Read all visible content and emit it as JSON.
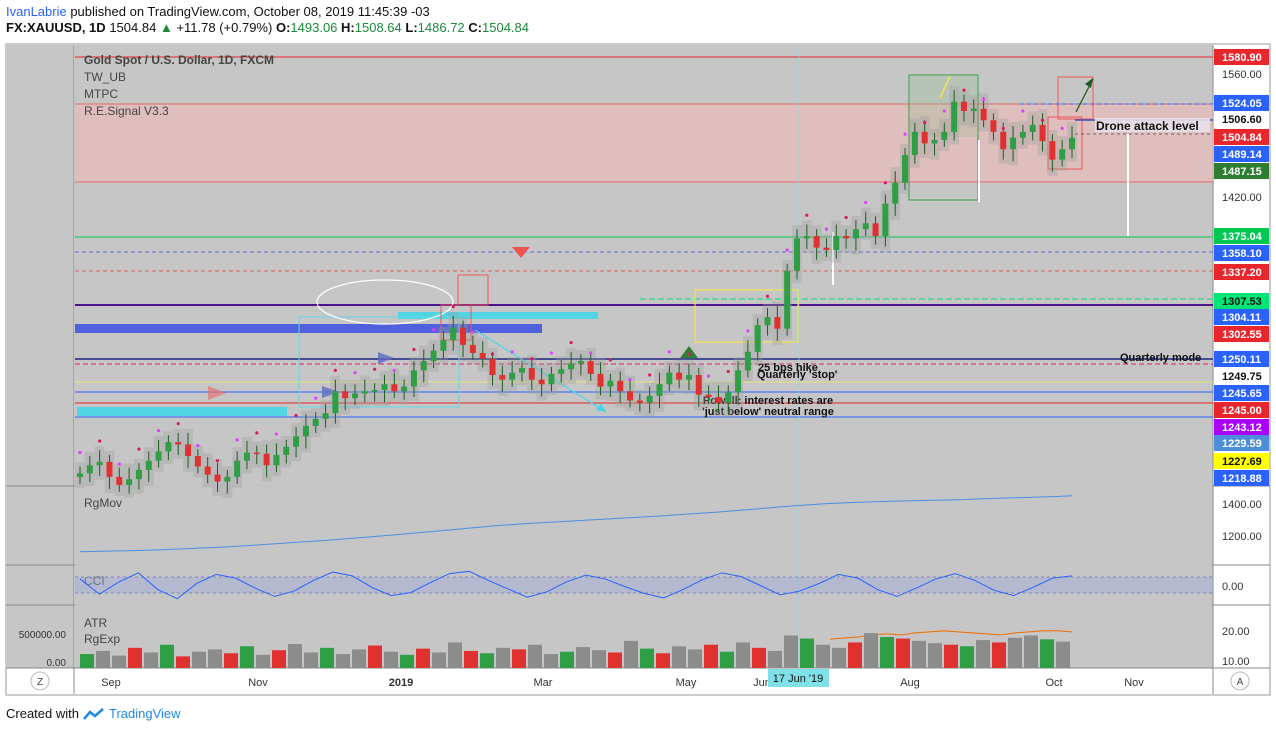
{
  "header": {
    "author": "IvanLabrie",
    "published": " published on TradingView.com, October 08, 2019 11:45:39 -03",
    "symbol": "FX:XAUUSD, 1D",
    "last": "1504.84",
    "change": "+11.78 (+0.79%)",
    "o_label": "O:",
    "o": "1493.06",
    "h_label": "H:",
    "h": "1508.64",
    "l_label": "L:",
    "l": "1486.72",
    "c_label": "C:",
    "c": "1504.84"
  },
  "footer": {
    "created_with": "Created with",
    "brand": "TradingView"
  },
  "chart_data": {
    "type": "candlestick",
    "title": "Gold Spot / U.S. Dollar, 1D, FXCM",
    "indicators": [
      "TW_UB",
      "MTPC",
      "R.E.Signal V3.3"
    ],
    "x_ticks": [
      "Sep",
      "Nov",
      "2019",
      "Mar",
      "May",
      "Jun",
      "Aug",
      "Oct",
      "Nov"
    ],
    "crosshair_date": "17 Jun '19",
    "y_ticks": [
      "1560.00",
      "1420.00",
      "1200.00"
    ],
    "ylim": [
      1205,
      1585
    ],
    "price_levels": [
      {
        "label": "1580.90",
        "bg": "#e8262c",
        "fg": "#ffffff"
      },
      {
        "label": "1524.05",
        "bg": "#2962ff",
        "fg": "#ffffff"
      },
      {
        "label": "1506.60",
        "bg": "#ffffff",
        "fg": "#111111"
      },
      {
        "label": "1504.84",
        "bg": "#e8262c",
        "fg": "#ffffff"
      },
      {
        "label": "1489.14",
        "bg": "#2962ff",
        "fg": "#ffffff"
      },
      {
        "label": "1487.15",
        "bg": "#2e7d32",
        "fg": "#ffffff"
      },
      {
        "label": "1375.04",
        "bg": "#00c853",
        "fg": "#ffffff"
      },
      {
        "label": "1358.10",
        "bg": "#2962ff",
        "fg": "#ffffff"
      },
      {
        "label": "1337.20",
        "bg": "#e8262c",
        "fg": "#ffffff"
      },
      {
        "label": "1307.53",
        "bg": "#00e676",
        "fg": "#111111"
      },
      {
        "label": "1304.11",
        "bg": "#2962ff",
        "fg": "#ffffff"
      },
      {
        "label": "1302.55",
        "bg": "#e8262c",
        "fg": "#ffffff"
      },
      {
        "label": "1250.11",
        "bg": "#2962ff",
        "fg": "#ffffff"
      },
      {
        "label": "1249.75",
        "bg": "#ffffff",
        "fg": "#111111"
      },
      {
        "label": "1245.65",
        "bg": "#2962ff",
        "fg": "#ffffff"
      },
      {
        "label": "1245.00",
        "bg": "#e8262c",
        "fg": "#ffffff"
      },
      {
        "label": "1243.12",
        "bg": "#aa00ff",
        "fg": "#ffffff"
      },
      {
        "label": "1229.59",
        "bg": "#4c8ed9",
        "fg": "#ffffff"
      },
      {
        "label": "1227.69",
        "bg": "#ffff00",
        "fg": "#111111"
      },
      {
        "label": "1218.88",
        "bg": "#2962ff",
        "fg": "#ffffff"
      }
    ],
    "annotations": [
      "Drone attack level",
      "Quarterly mode",
      "25 bps hike",
      "Quarterly 'stop'",
      "Powell: interest rates are",
      "'just below' neutral range"
    ],
    "close_series": [
      1215,
      1222,
      1225,
      1212,
      1205,
      1210,
      1218,
      1226,
      1234,
      1242,
      1240,
      1230,
      1221,
      1214,
      1208,
      1212,
      1226,
      1233,
      1232,
      1222,
      1231,
      1238,
      1247,
      1256,
      1262,
      1267,
      1286,
      1280,
      1284,
      1286,
      1287,
      1292,
      1286,
      1290,
      1304,
      1312,
      1321,
      1330,
      1341,
      1326,
      1319,
      1314,
      1300,
      1296,
      1302,
      1306,
      1296,
      1292,
      1301,
      1305,
      1310,
      1312,
      1301,
      1290,
      1295,
      1286,
      1278,
      1276,
      1282,
      1292,
      1302,
      1296,
      1300,
      1283,
      1281,
      1276,
      1285,
      1304,
      1320,
      1343,
      1350,
      1340,
      1390,
      1418,
      1420,
      1410,
      1408,
      1420,
      1418,
      1426,
      1431,
      1420,
      1448,
      1466,
      1490,
      1510,
      1500,
      1503,
      1510,
      1536,
      1528,
      1530,
      1520,
      1510,
      1495,
      1505,
      1510,
      1516,
      1502,
      1486,
      1495,
      1504.84
    ],
    "panels": [
      {
        "name": "RgMov",
        "ticks": [
          "1400.00",
          "1200.00"
        ],
        "ylim": [
          1080,
          1520
        ],
        "values": [
          1150,
          1152,
          1154,
          1156,
          1158,
          1161,
          1164,
          1168,
          1172,
          1176,
          1181,
          1186,
          1192,
          1198,
          1204,
          1210,
          1216,
          1223,
          1230,
          1237,
          1244,
          1252,
          1260,
          1268,
          1276,
          1284,
          1292,
          1300,
          1306,
          1312,
          1317,
          1322,
          1327,
          1332,
          1337,
          1342,
          1347,
          1352,
          1358,
          1364,
          1370,
          1376,
          1383,
          1390,
          1397,
          1405,
          1412,
          1418,
          1424,
          1428,
          1432,
          1435,
          1438,
          1440,
          1442,
          1444,
          1446,
          1448,
          1452,
          1455,
          1458,
          1460,
          1463,
          1466,
          1470
        ]
      },
      {
        "name": "CCI",
        "ticks": [
          "0.00"
        ],
        "ylim": [
          -250,
          250
        ],
        "values": [
          80,
          -120,
          40,
          160,
          -60,
          -180,
          20,
          140,
          90,
          -40,
          -150,
          -80,
          60,
          170,
          120,
          -30,
          -140,
          -100,
          30,
          150,
          180,
          60,
          -50,
          -160,
          -90,
          40,
          130,
          80,
          -20,
          -110,
          -170,
          -60,
          70,
          160,
          110,
          -10,
          -130,
          -80,
          20,
          140,
          90,
          -60,
          -150,
          -40,
          80,
          150,
          60,
          -70,
          -140,
          -30,
          90,
          120
        ]
      },
      {
        "name": "ATR",
        "sub": "RgExp",
        "ticks": [
          "500000.00",
          "0.00"
        ],
        "ticks_right": [
          "20.00",
          "10.00"
        ],
        "ylim": [
          0,
          800000
        ],
        "atr": [
          24,
          24.5,
          25,
          26,
          26.5,
          26,
          27,
          27.5,
          28,
          27.5,
          27,
          26.5,
          26,
          27,
          27.5,
          28,
          28,
          27.5
        ],
        "volume": [
          180000,
          220000,
          160000,
          260000,
          200000,
          300000,
          150000,
          210000,
          240000,
          190000,
          280000,
          170000,
          230000,
          310000,
          200000,
          260000,
          180000,
          240000,
          290000,
          210000,
          170000,
          250000,
          200000,
          330000,
          220000,
          190000,
          260000,
          240000,
          300000,
          180000,
          210000,
          270000,
          230000,
          200000,
          350000,
          250000,
          190000,
          280000,
          240000,
          300000,
          210000,
          330000,
          260000,
          220000,
          420000,
          380000,
          300000,
          260000,
          330000,
          450000,
          400000,
          380000,
          350000,
          320000,
          300000,
          280000,
          360000,
          330000,
          390000,
          420000,
          370000,
          340000
        ]
      }
    ]
  },
  "ui": {
    "z_button": "Z",
    "a_button": "A"
  },
  "colors": {
    "pane_bg": "#c6c6c6",
    "up": "#2f9e44",
    "down": "#e03131",
    "accent": "#2962ff"
  }
}
